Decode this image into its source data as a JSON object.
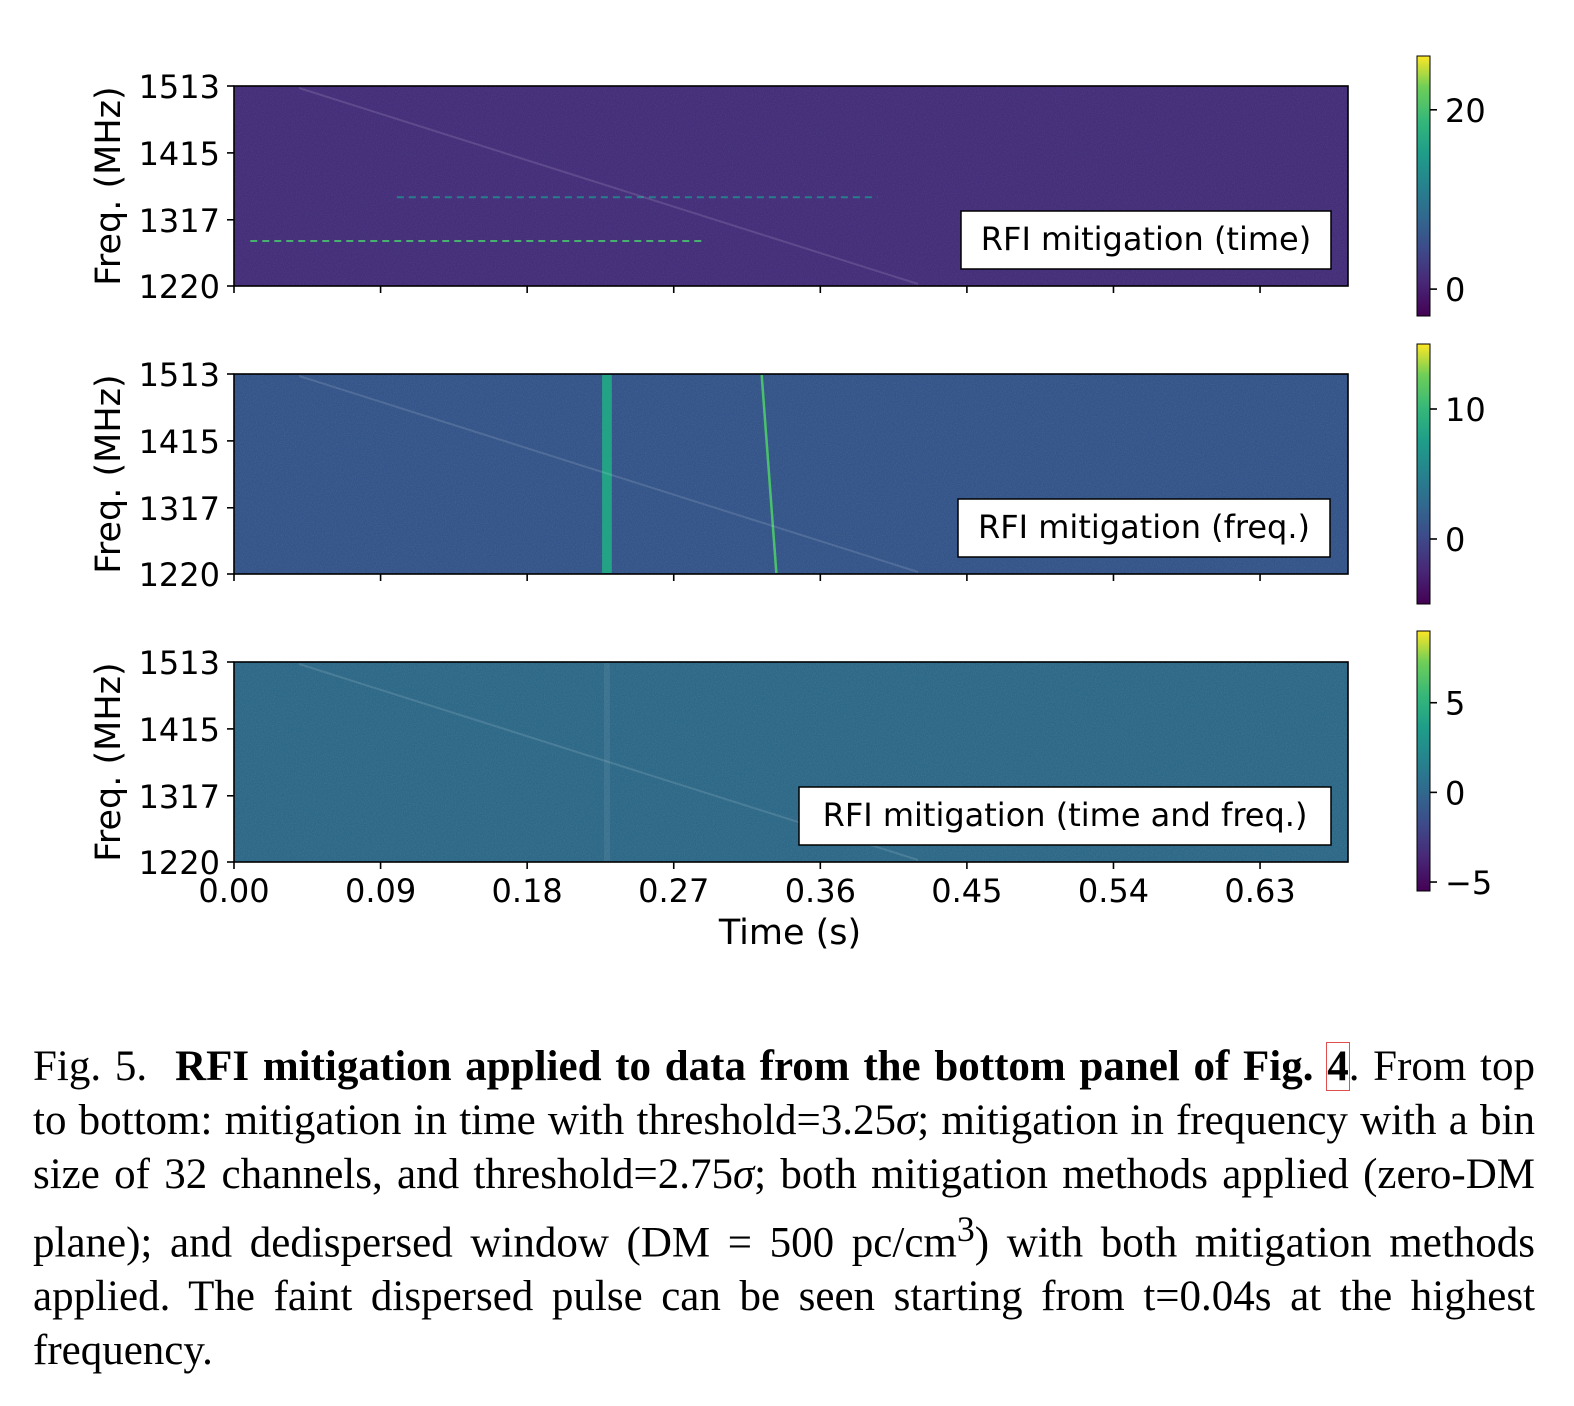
{
  "chart_data": [
    {
      "type": "heatmap",
      "annotation": "RFI mitigation (time)",
      "ylabel": "Freq. (MHz)",
      "yticks": [
        "1513",
        "1415",
        "1317",
        "1220"
      ],
      "ytick_values": [
        1513,
        1415,
        1317,
        1220
      ],
      "ylim": [
        1220,
        1513
      ],
      "xlim": [
        0.0,
        0.684
      ],
      "xlabel": "",
      "xtick_labels_shown": false,
      "colorbar": {
        "ticks": [
          "20",
          "0"
        ],
        "tick_values": [
          20,
          0
        ],
        "range": [
          -3,
          26
        ]
      },
      "background_level": -1.5,
      "features": [
        {
          "kind": "dashed-horizontal-line",
          "freq_mhz": 1350,
          "t_start": 0.1,
          "t_end": 0.395,
          "level": 12
        },
        {
          "kind": "dashed-horizontal-line",
          "freq_mhz": 1286,
          "t_start": 0.01,
          "t_end": 0.29,
          "level": 20
        },
        {
          "kind": "faint-dispersed-pulse",
          "t_at_top": 0.04,
          "t_at_bottom": 0.42
        }
      ]
    },
    {
      "type": "heatmap",
      "annotation": "RFI mitigation (freq.)",
      "ylabel": "Freq. (MHz)",
      "yticks": [
        "1513",
        "1415",
        "1317",
        "1220"
      ],
      "ytick_values": [
        1513,
        1415,
        1317,
        1220
      ],
      "ylim": [
        1220,
        1513
      ],
      "xlim": [
        0.0,
        0.684
      ],
      "xlabel": "",
      "xtick_labels_shown": false,
      "colorbar": {
        "ticks": [
          "10",
          "0"
        ],
        "tick_values": [
          10,
          0
        ],
        "range": [
          -5,
          15
        ]
      },
      "background_level": 0,
      "features": [
        {
          "kind": "broadband-vertical-band",
          "t_start": 0.226,
          "t_end": 0.232,
          "level": 8
        },
        {
          "kind": "dispersed-line",
          "t_at_top": 0.324,
          "t_at_bottom": 0.333,
          "level": 11
        },
        {
          "kind": "faint-dispersed-pulse",
          "t_at_top": 0.04,
          "t_at_bottom": 0.42
        }
      ]
    },
    {
      "type": "heatmap",
      "annotation": "RFI mitigation (time and freq.)",
      "ylabel": "Freq. (MHz)",
      "yticks": [
        "1513",
        "1415",
        "1317",
        "1220"
      ],
      "ytick_values": [
        1513,
        1415,
        1317,
        1220
      ],
      "ylim": [
        1220,
        1513
      ],
      "xlim": [
        0.0,
        0.684
      ],
      "xlabel": "Time (s)",
      "xticks": [
        "0.00",
        "0.09",
        "0.18",
        "0.27",
        "0.36",
        "0.45",
        "0.54",
        "0.63"
      ],
      "xtick_values": [
        0.0,
        0.09,
        0.18,
        0.27,
        0.36,
        0.45,
        0.54,
        0.63
      ],
      "xtick_labels_shown": true,
      "colorbar": {
        "ticks": [
          "5",
          "0",
          "−5"
        ],
        "tick_values": [
          5,
          0,
          -5
        ],
        "range": [
          -5.5,
          9
        ]
      },
      "background_level": 0,
      "features": [
        {
          "kind": "faint-dispersed-pulse",
          "t_at_top": 0.04,
          "t_at_bottom": 0.42
        },
        {
          "kind": "faint-vertical-residual",
          "t": 0.229
        }
      ]
    }
  ],
  "caption": {
    "fig_label": "Fig. 5.",
    "bold_title": "RFI mitigation applied to data from the bottom panel of Fig.",
    "fig_ref": "4",
    "text_1": ". From top to bottom: mitigation in time with threshold=3.25",
    "sigma": "σ",
    "text_2": "; mitigation in frequency with a bin size of 32 channels, and threshold=2.75",
    "text_3": "; both mitigation methods applied (zero-DM plane); and dedispersed window (DM = 500 pc/cm",
    "superscript": "3",
    "text_4": ") with both mitigation methods applied. The faint dispersed pulse can be seen starting from t=0.04s at the highest frequency."
  }
}
